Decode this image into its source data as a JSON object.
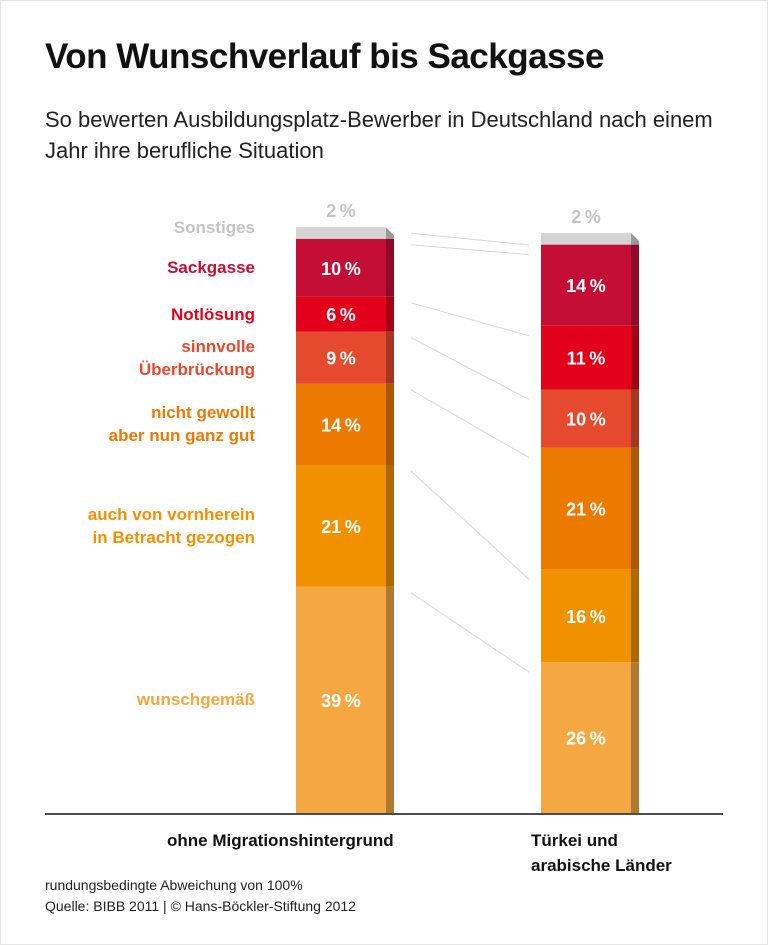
{
  "title": "Von Wunschverlauf bis Sackgasse",
  "subtitle": "So bewerten Ausbildungsplatz-Bewerber in Deutschland nach einem Jahr ihre berufliche Situation",
  "chart_data": {
    "type": "bar",
    "stacked": true,
    "orientation": "vertical",
    "categories": [
      "ohne Migrationshintergrund",
      "Türkei und arabische Länder"
    ],
    "series": [
      {
        "name": "wunschgemäß",
        "values": [
          39,
          26
        ],
        "color": "#f5a842",
        "label_color": "#f5a842"
      },
      {
        "name": "auch von vornherein in Betracht gezogen",
        "values": [
          21,
          16
        ],
        "color": "#f29100",
        "label_color": "#f29100"
      },
      {
        "name": "nicht gewollt aber nun ganz gut",
        "values": [
          14,
          21
        ],
        "color": "#ec7a00",
        "label_color": "#ec7a00"
      },
      {
        "name": "sinnvolle Überbrückung",
        "values": [
          9,
          10
        ],
        "color": "#e64a2e",
        "label_color": "#e64a2e"
      },
      {
        "name": "Notlösung",
        "values": [
          6,
          11
        ],
        "color": "#e2001a",
        "label_color": "#e2001a"
      },
      {
        "name": "Sackgasse",
        "values": [
          10,
          14
        ],
        "color": "#c50e35",
        "label_color": "#c50e35"
      },
      {
        "name": "Sonstiges",
        "values": [
          2,
          2
        ],
        "color": "#d4d4d4",
        "label_color": "#c4c4c4"
      }
    ],
    "series_labels": [
      "wunschgemäß",
      "auch von vornherein\nin Betracht gezogen",
      "nicht gewollt\naber nun ganz gut",
      "sinnvolle\nÜberbrückung",
      "Notlösung",
      "Sackgasse",
      "Sonstiges"
    ],
    "category_labels": [
      "ohne Migrationshintergrund",
      "Türkei und\narabische Länder"
    ],
    "unit": "%",
    "grid": false,
    "legend": "left"
  },
  "footnote": "rundungsbedingte Abweichung von 100%",
  "source": "Quelle: BIBB 2011 | © Hans-Böckler-Stiftung 2012"
}
